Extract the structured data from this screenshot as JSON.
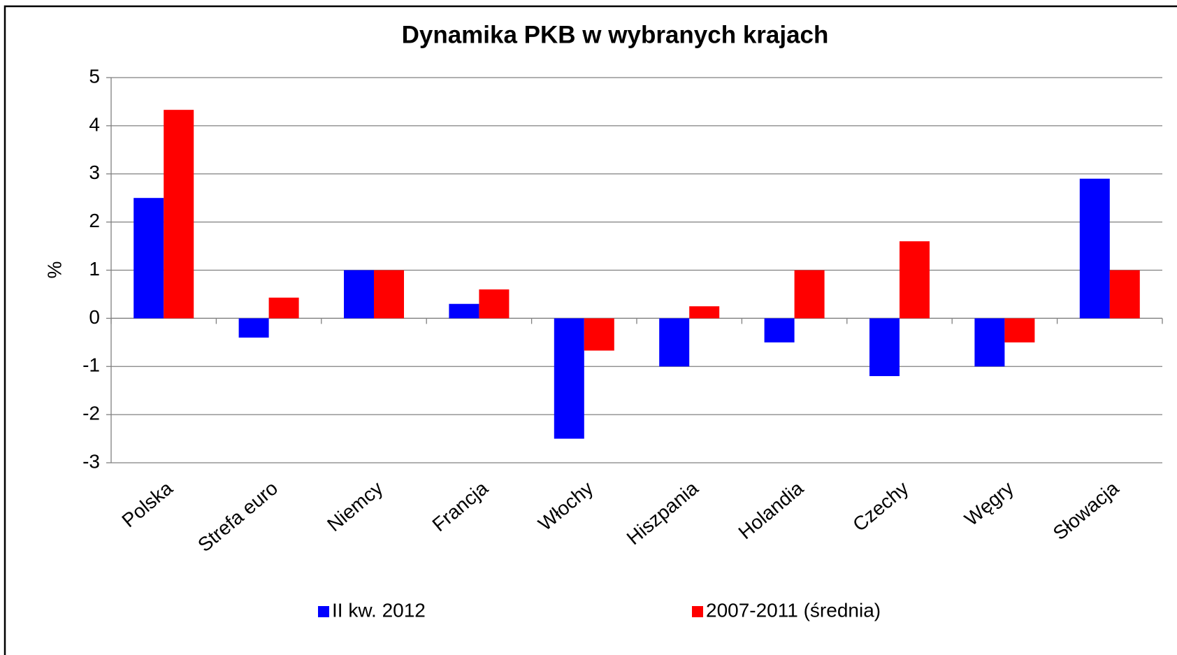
{
  "chart_data": {
    "type": "bar",
    "title": "Dynamika PKB w wybranych krajach",
    "y_label": "%",
    "categories": [
      "Polska",
      "Strefa euro",
      "Niemcy",
      "Francja",
      "Włochy",
      "Hiszpania",
      "Holandia",
      "Czechy",
      "Węgry",
      "Słowacja"
    ],
    "series": [
      {
        "name": "II kw. 2012",
        "color": "#0000ff",
        "values": [
          2.5,
          -0.4,
          1.0,
          0.3,
          -2.5,
          -1.0,
          -0.5,
          -1.2,
          -1.0,
          2.9
        ]
      },
      {
        "name": "2007-2011 (średnia)",
        "color": "#ff0000",
        "values": [
          4.33,
          0.43,
          1.0,
          0.6,
          -0.67,
          0.25,
          1.0,
          1.6,
          -0.5,
          1.0
        ]
      }
    ],
    "ylim": [
      -3,
      5
    ],
    "yticks": [
      -3,
      -2,
      -1,
      0,
      1,
      2,
      3,
      4,
      5
    ],
    "grid": true,
    "legend": "bottom"
  }
}
